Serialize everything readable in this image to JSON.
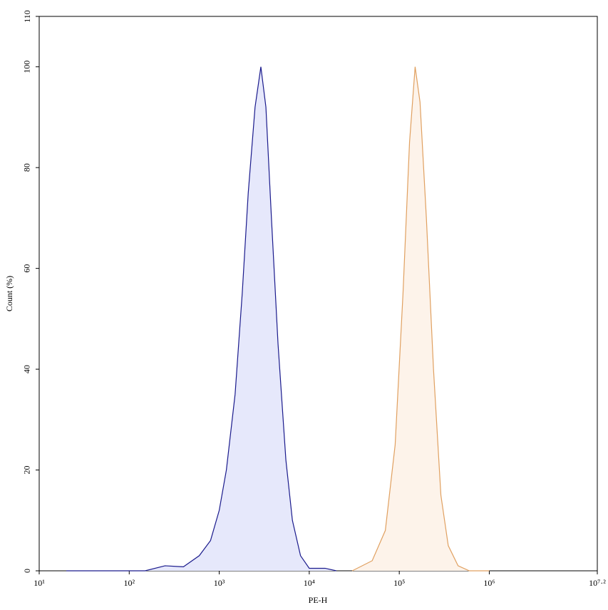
{
  "chart_data": {
    "type": "area",
    "xlabel": "PE-H",
    "ylabel": "Count (%)",
    "xscale": "log",
    "xlim": [
      10,
      15848931.92
    ],
    "xticks": [
      {
        "value": 10,
        "label": "10¹"
      },
      {
        "value": 100,
        "label": "10²"
      },
      {
        "value": 1000,
        "label": "10³"
      },
      {
        "value": 10000,
        "label": "10⁴"
      },
      {
        "value": 100000,
        "label": "10⁵"
      },
      {
        "value": 1000000,
        "label": "10⁶"
      },
      {
        "value": 15848931.92,
        "label": "10⁷·²"
      }
    ],
    "ylim": [
      0,
      110
    ],
    "yticks": [
      0,
      20,
      40,
      60,
      80,
      100,
      110
    ],
    "series": [
      {
        "color": "#1a1a8c",
        "fill": "#e6e8fb",
        "x": [
          20,
          150,
          250,
          400,
          600,
          800,
          1000,
          1200,
          1500,
          1800,
          2100,
          2500,
          2900,
          3300,
          3800,
          4500,
          5500,
          6500,
          8000,
          10000,
          15000,
          20000
        ],
        "values": [
          0,
          0,
          1,
          0.8,
          3,
          6,
          12,
          20,
          35,
          55,
          75,
          92,
          100,
          92,
          70,
          45,
          22,
          10,
          3,
          0.5,
          0.5,
          0
        ]
      },
      {
        "color": "#e0a060",
        "fill": "#fdf3ea",
        "x": [
          30000,
          50000,
          70000,
          90000,
          110000,
          130000,
          150000,
          170000,
          200000,
          240000,
          290000,
          350000,
          450000,
          600000,
          1000000
        ],
        "values": [
          0,
          2,
          8,
          25,
          55,
          85,
          100,
          93,
          70,
          40,
          15,
          5,
          1,
          0,
          0
        ]
      }
    ]
  }
}
